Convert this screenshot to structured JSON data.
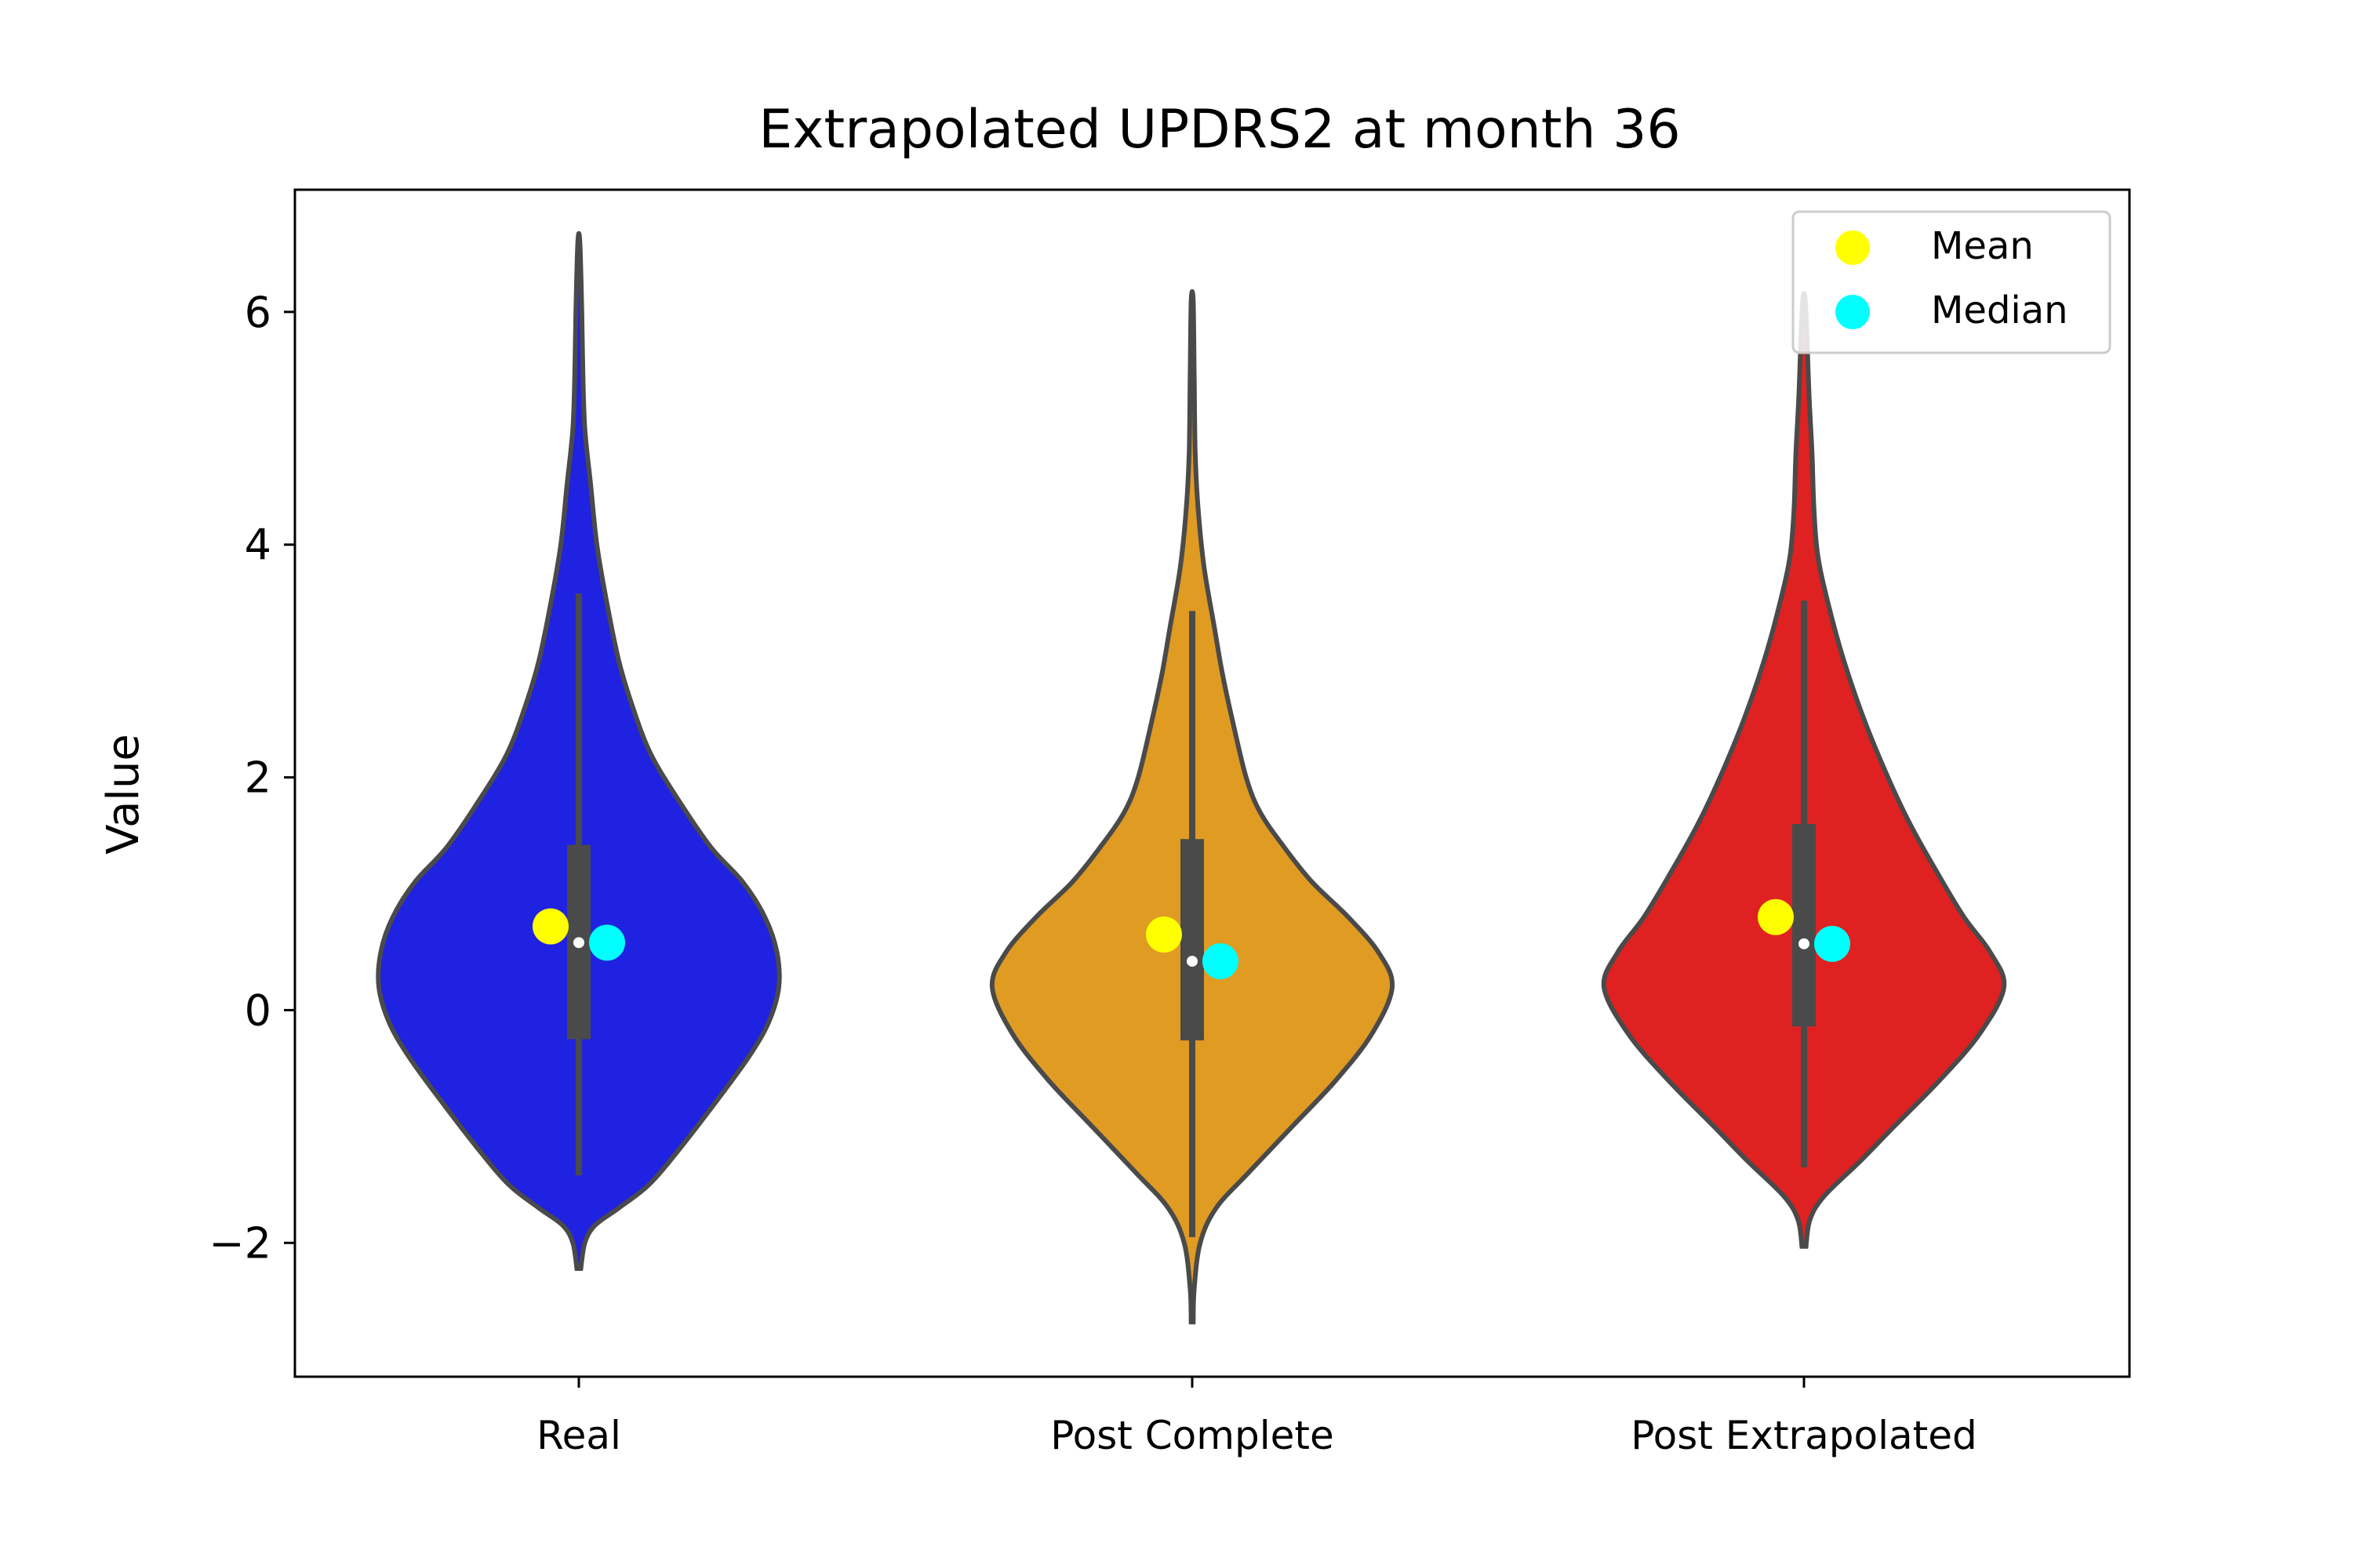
{
  "chart_data": {
    "type": "violin",
    "title": "Extrapolated UPDRS2 at month 36",
    "xlabel": "",
    "ylabel": "Value",
    "ylim": [
      -3.15,
      7.05
    ],
    "yticks": [
      -2,
      0,
      2,
      4,
      6
    ],
    "ytick_labels": [
      "−2",
      "0",
      "2",
      "4",
      "6"
    ],
    "categories": [
      "Real",
      "Post Complete",
      "Post Extrapolated"
    ],
    "legend": {
      "position": "top-right",
      "entries": [
        "Mean",
        "Median"
      ]
    },
    "colors": {
      "violins": [
        "#1f22e0",
        "#df9b22",
        "#df2121"
      ],
      "outline": "#4a4a4a",
      "box": "#4a4a4a",
      "mean": "#ffff00",
      "median": "#00ffff"
    },
    "series": [
      {
        "category": "Real",
        "mean": 0.72,
        "median": 0.58,
        "box": {
          "q1": -0.25,
          "q3": 1.42,
          "median": 0.58
        },
        "whiskers": [
          -1.42,
          3.58
        ],
        "density": [
          [
            -2.22,
            0.01
          ],
          [
            -2.0,
            0.03
          ],
          [
            -1.85,
            0.08
          ],
          [
            -1.7,
            0.2
          ],
          [
            -1.5,
            0.35
          ],
          [
            -1.2,
            0.5
          ],
          [
            -0.8,
            0.68
          ],
          [
            -0.4,
            0.85
          ],
          [
            -0.1,
            0.95
          ],
          [
            0.2,
            1.0
          ],
          [
            0.5,
            0.99
          ],
          [
            0.8,
            0.93
          ],
          [
            1.1,
            0.82
          ],
          [
            1.4,
            0.66
          ],
          [
            1.8,
            0.5
          ],
          [
            2.2,
            0.36
          ],
          [
            2.6,
            0.27
          ],
          [
            3.0,
            0.2
          ],
          [
            3.5,
            0.14
          ],
          [
            4.0,
            0.09
          ],
          [
            4.5,
            0.06
          ],
          [
            5.0,
            0.03
          ],
          [
            5.5,
            0.02
          ],
          [
            6.0,
            0.015
          ],
          [
            6.6,
            0.005
          ]
        ]
      },
      {
        "category": "Post Complete",
        "mean": 0.65,
        "median": 0.42,
        "box": {
          "q1": -0.26,
          "q3": 1.47,
          "median": 0.42
        },
        "whiskers": [
          -1.95,
          3.43
        ],
        "density": [
          [
            -2.68,
            0.005
          ],
          [
            -2.4,
            0.01
          ],
          [
            -2.0,
            0.04
          ],
          [
            -1.7,
            0.12
          ],
          [
            -1.4,
            0.28
          ],
          [
            -1.0,
            0.5
          ],
          [
            -0.6,
            0.72
          ],
          [
            -0.2,
            0.9
          ],
          [
            0.2,
            1.0
          ],
          [
            0.5,
            0.93
          ],
          [
            0.8,
            0.78
          ],
          [
            1.1,
            0.6
          ],
          [
            1.4,
            0.46
          ],
          [
            1.7,
            0.34
          ],
          [
            2.0,
            0.27
          ],
          [
            2.5,
            0.2
          ],
          [
            2.9,
            0.15
          ],
          [
            3.3,
            0.11
          ],
          [
            3.8,
            0.06
          ],
          [
            4.3,
            0.03
          ],
          [
            4.8,
            0.015
          ],
          [
            5.5,
            0.01
          ],
          [
            6.1,
            0.005
          ]
        ]
      },
      {
        "category": "Post Extrapolated",
        "mean": 0.8,
        "median": 0.57,
        "box": {
          "q1": -0.14,
          "q3": 1.6,
          "median": 0.57
        },
        "whiskers": [
          -1.35,
          3.52
        ],
        "density": [
          [
            -2.03,
            0.01
          ],
          [
            -1.8,
            0.03
          ],
          [
            -1.6,
            0.1
          ],
          [
            -1.3,
            0.28
          ],
          [
            -1.0,
            0.45
          ],
          [
            -0.6,
            0.68
          ],
          [
            -0.2,
            0.88
          ],
          [
            0.2,
            1.0
          ],
          [
            0.5,
            0.93
          ],
          [
            0.8,
            0.8
          ],
          [
            1.2,
            0.66
          ],
          [
            1.6,
            0.53
          ],
          [
            2.0,
            0.42
          ],
          [
            2.5,
            0.3
          ],
          [
            3.0,
            0.2
          ],
          [
            3.5,
            0.12
          ],
          [
            3.9,
            0.07
          ],
          [
            4.3,
            0.05
          ],
          [
            4.8,
            0.04
          ],
          [
            5.3,
            0.025
          ],
          [
            5.8,
            0.015
          ],
          [
            6.12,
            0.005
          ]
        ]
      }
    ]
  }
}
